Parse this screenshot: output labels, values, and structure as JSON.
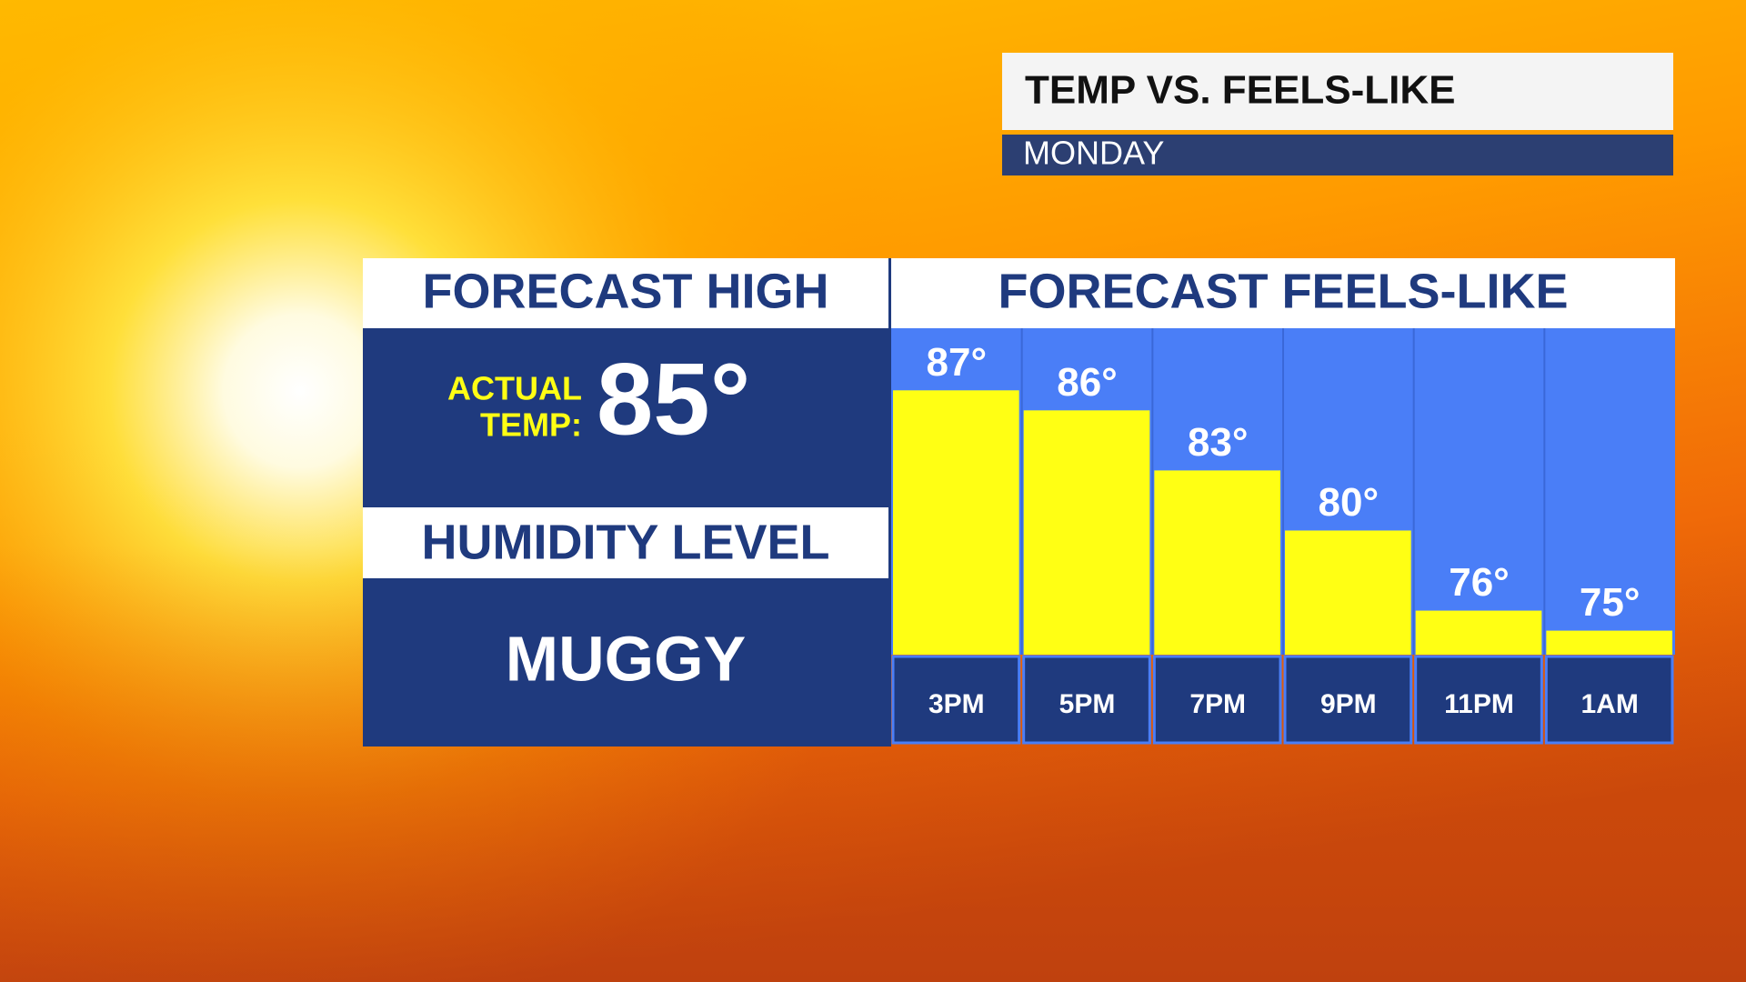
{
  "header": {
    "title": "TEMP VS. FEELS-LIKE",
    "subtitle": "MONDAY"
  },
  "left_panel": {
    "heading": "FORECAST HIGH",
    "actual_label": [
      "ACTUAL",
      "TEMP:"
    ],
    "high": "85°",
    "humidity_heading": "HUMIDITY LEVEL",
    "humidity": "MUGGY"
  },
  "chart_data": {
    "type": "bar",
    "title": "FORECAST FEELS-LIKE",
    "categories": [
      "3PM",
      "5PM",
      "7PM",
      "9PM",
      "11PM",
      "1AM"
    ],
    "values": [
      87,
      86,
      83,
      80,
      76,
      75
    ],
    "value_labels": [
      "87°",
      "86°",
      "83°",
      "80°",
      "76°",
      "75°"
    ],
    "color": "#ffff14",
    "background": "#4a7ef7",
    "ylim": [
      73.8,
      90.1
    ]
  }
}
